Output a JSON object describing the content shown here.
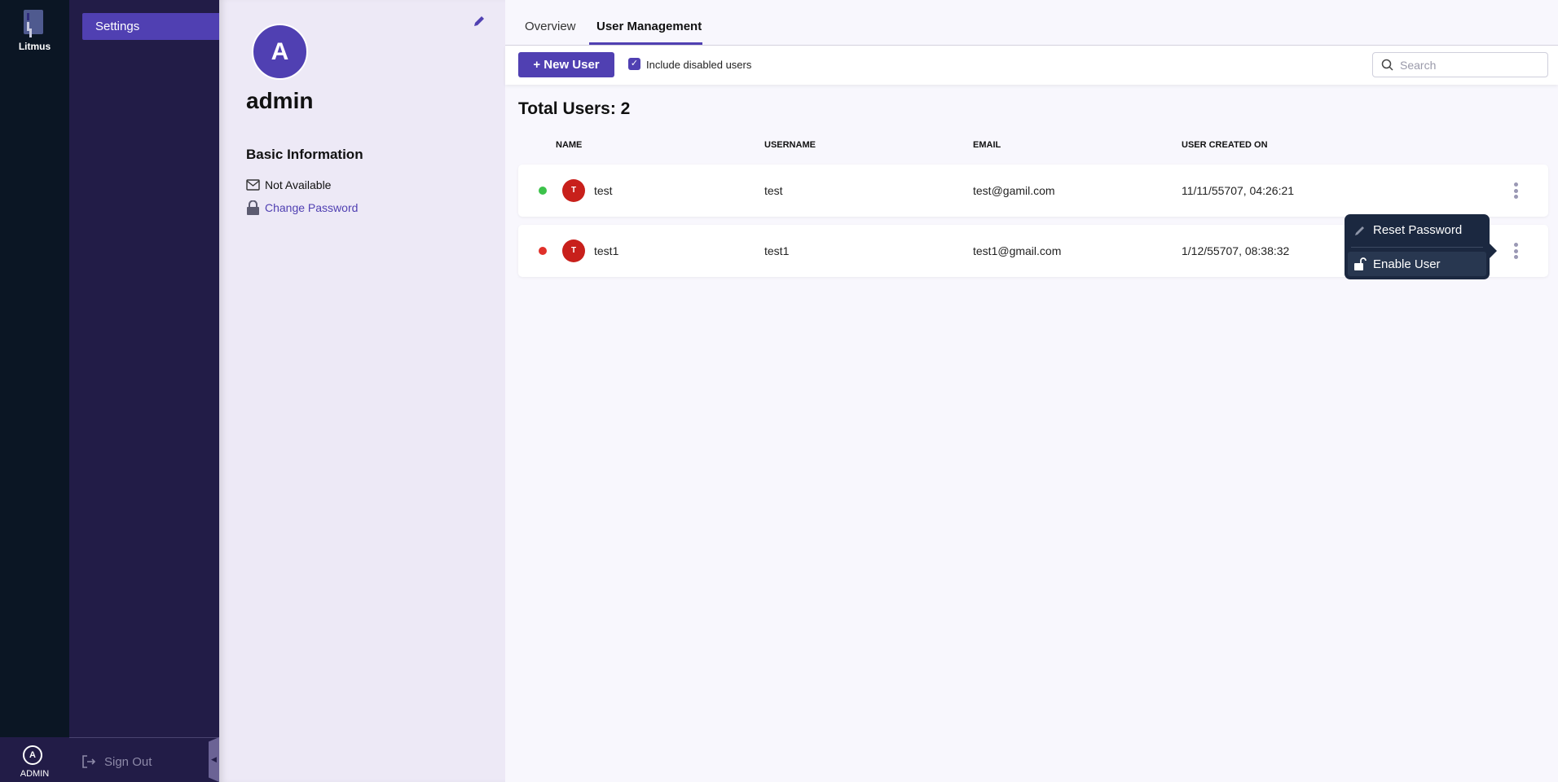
{
  "rail": {
    "brand": "Litmus",
    "user_initial": "A",
    "user_label": "ADMIN"
  },
  "nav": {
    "items": [
      {
        "label": "Settings",
        "active": true
      }
    ],
    "sign_out": "Sign Out"
  },
  "profile": {
    "initial": "A",
    "username": "admin",
    "section_title": "Basic Information",
    "email": "Not Available",
    "change_password": "Change Password"
  },
  "tabs": [
    {
      "label": "Overview",
      "active": false
    },
    {
      "label": "User Management",
      "active": true
    }
  ],
  "toolbar": {
    "new_user": "New User",
    "include_disabled_label": "Include disabled users",
    "include_disabled_checked": true,
    "search_placeholder": "Search"
  },
  "table": {
    "total_label": "Total Users: 2",
    "headers": [
      "NAME",
      "USERNAME",
      "EMAIL",
      "USER CREATED ON"
    ],
    "rows": [
      {
        "status": "enabled",
        "status_color": "#3cc24a",
        "initial": "T",
        "name": "test",
        "username": "test",
        "email": "test@gamil.com",
        "created": "11/11/55707, 04:26:21"
      },
      {
        "status": "disabled",
        "status_color": "#e0302a",
        "initial": "T",
        "name": "test1",
        "username": "test1",
        "email": "test1@gmail.com",
        "created": "1/12/55707, 08:38:32"
      }
    ]
  },
  "menu": {
    "items": [
      {
        "label": "Reset Password",
        "icon": "pencil-icon"
      },
      {
        "label": "Enable User",
        "icon": "unlock-icon"
      }
    ]
  },
  "colors": {
    "accent": "#5040b2",
    "rail": "#0b1624",
    "nav": "#221c47"
  }
}
